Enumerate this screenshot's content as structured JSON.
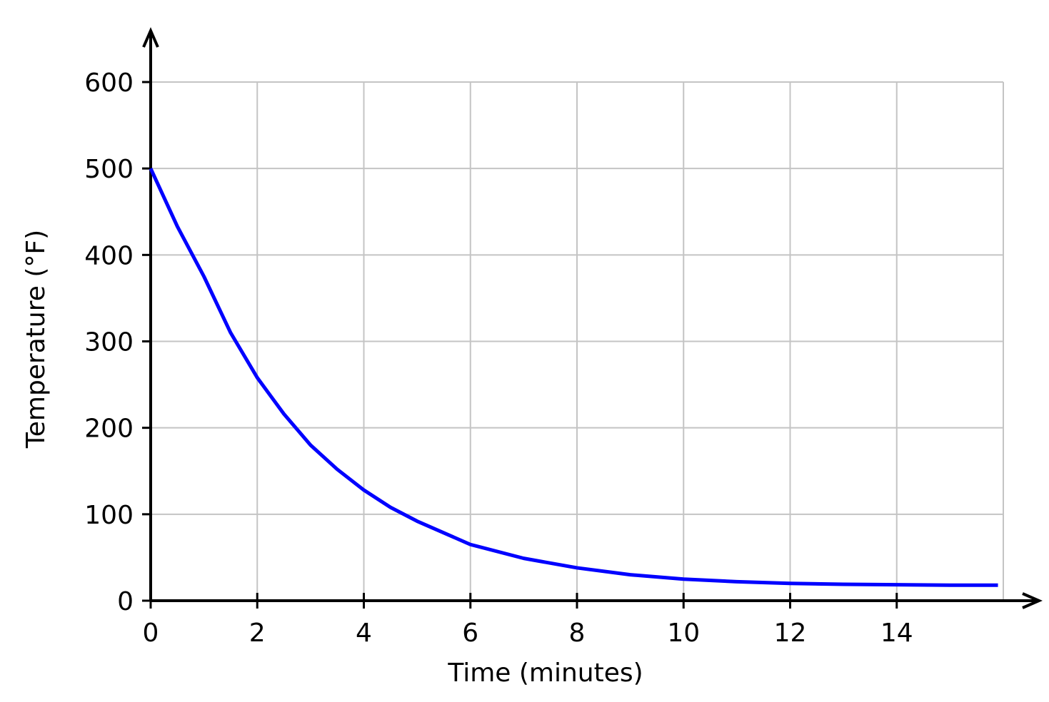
{
  "chart_data": {
    "type": "line",
    "x_label": "Time (minutes)",
    "y_label": "Temperature (°F)",
    "x": [
      0,
      0.5,
      1,
      1.5,
      2,
      2.5,
      3,
      3.5,
      4,
      4.5,
      5,
      6,
      7,
      8,
      9,
      10,
      11,
      12,
      13,
      14,
      15,
      15.9
    ],
    "series": [
      {
        "color": "#0000ff",
        "values": [
          500,
          433,
          375,
          310,
          258,
          216,
          180,
          152,
          128,
          108,
          92,
          65,
          49,
          38,
          30,
          25,
          22,
          20,
          19,
          18.5,
          18,
          18
        ]
      }
    ],
    "xlim": [
      0,
      16
    ],
    "xticks": [
      0,
      2,
      4,
      6,
      8,
      10,
      12,
      14
    ],
    "ylim": [
      0,
      600
    ],
    "yticks": [
      0,
      100,
      200,
      300,
      400,
      500,
      600
    ],
    "grid": true
  }
}
